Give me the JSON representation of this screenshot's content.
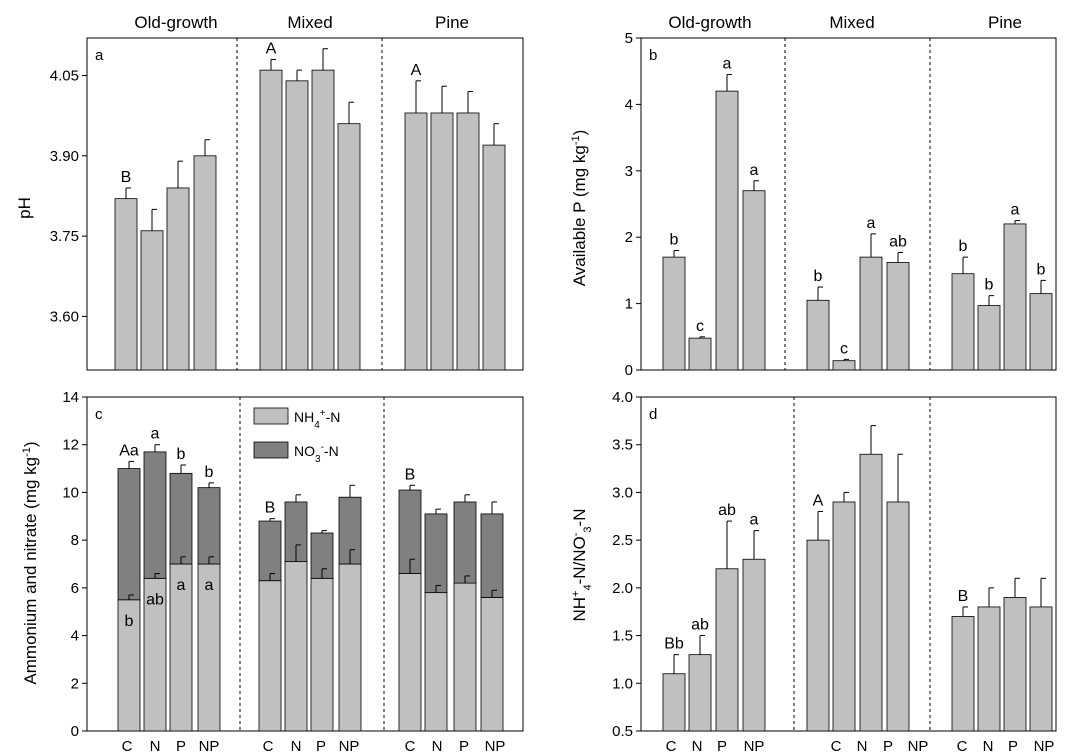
{
  "colors": {
    "bar": "#c0c0c0",
    "nitrate": "#808080",
    "edge": "#000000"
  },
  "groups": [
    "Old-growth",
    "Mixed",
    "Pine"
  ],
  "treatments": [
    "C",
    "N",
    "P",
    "NP"
  ],
  "chart_data": [
    {
      "panel": "a",
      "type": "bar",
      "ylabel": "pH",
      "ylim": [
        3.5,
        4.12
      ],
      "yticks": [
        3.6,
        3.75,
        3.9,
        4.05
      ],
      "ytick_labels": [
        "3.60",
        "3.75",
        "3.90",
        "4.05"
      ],
      "groups": [
        "Old-growth",
        "Mixed",
        "Pine"
      ],
      "categories": [
        "C",
        "N",
        "P",
        "NP"
      ],
      "values": [
        [
          3.82,
          3.76,
          3.84,
          3.9
        ],
        [
          4.06,
          4.04,
          4.06,
          3.96
        ],
        [
          3.98,
          3.98,
          3.98,
          3.92
        ]
      ],
      "errors": [
        [
          0.02,
          0.04,
          0.05,
          0.03
        ],
        [
          0.02,
          0.02,
          0.04,
          0.04
        ],
        [
          0.06,
          0.05,
          0.04,
          0.04
        ]
      ],
      "letters": [
        [
          "B",
          "",
          "",
          ""
        ],
        [
          "A",
          "",
          "",
          ""
        ],
        [
          "A",
          "",
          "",
          ""
        ]
      ]
    },
    {
      "panel": "b",
      "type": "bar",
      "ylabel": "Available P (mg kg-1)",
      "ylim": [
        0,
        5
      ],
      "yticks": [
        0,
        1,
        2,
        3,
        4,
        5
      ],
      "ytick_labels": [
        "0",
        "1",
        "2",
        "3",
        "4",
        "5"
      ],
      "groups": [
        "Old-growth",
        "Mixed",
        "Pine"
      ],
      "categories": [
        "C",
        "N",
        "P",
        "NP"
      ],
      "values": [
        [
          1.7,
          0.48,
          4.2,
          2.7
        ],
        [
          1.05,
          0.14,
          1.7,
          1.62
        ],
        [
          1.45,
          0.97,
          2.2,
          1.15
        ]
      ],
      "errors": [
        [
          0.1,
          0.02,
          0.25,
          0.15
        ],
        [
          0.2,
          0.02,
          0.35,
          0.15
        ],
        [
          0.25,
          0.15,
          0.05,
          0.2
        ]
      ],
      "letters": [
        [
          "b",
          "c",
          "a",
          "a"
        ],
        [
          "b",
          "c",
          "a",
          "ab"
        ],
        [
          "b",
          "b",
          "a",
          "b"
        ]
      ]
    },
    {
      "panel": "c",
      "type": "bar",
      "stacked": true,
      "ylabel": "Ammonium and nitrate (mg kg-1)",
      "ylim": [
        0,
        14
      ],
      "yticks": [
        0,
        2,
        4,
        6,
        8,
        10,
        12,
        14
      ],
      "ytick_labels": [
        "0",
        "2",
        "4",
        "6",
        "8",
        "10",
        "12",
        "14"
      ],
      "groups": [
        "Old-growth",
        "Mixed",
        "Pine"
      ],
      "categories": [
        "C",
        "N",
        "P",
        "NP"
      ],
      "legend": {
        "nh4": "NH4+-N",
        "no3": "NO3--N"
      },
      "series": [
        {
          "name": "NH4+-N",
          "values": [
            [
              5.5,
              6.4,
              7.0,
              7.0
            ],
            [
              6.3,
              7.1,
              6.4,
              7.0
            ],
            [
              6.6,
              5.8,
              6.2,
              5.6
            ]
          ],
          "errors": [
            [
              0.2,
              0.2,
              0.3,
              0.3
            ],
            [
              0.3,
              0.7,
              0.4,
              0.6
            ],
            [
              0.6,
              0.3,
              0.3,
              0.3
            ]
          ]
        },
        {
          "name": "NO3--N",
          "values": [
            [
              5.5,
              5.3,
              3.8,
              3.2
            ],
            [
              2.5,
              2.5,
              1.9,
              2.8
            ],
            [
              3.5,
              3.3,
              3.4,
              3.5
            ]
          ]
        }
      ],
      "totals": [
        [
          11.0,
          11.7,
          10.8,
          10.2
        ],
        [
          8.8,
          9.6,
          8.3,
          9.8
        ],
        [
          10.1,
          9.1,
          9.6,
          9.1
        ]
      ],
      "total_errors": [
        [
          0.3,
          0.3,
          0.35,
          0.2
        ],
        [
          0.1,
          0.3,
          0.1,
          0.5
        ],
        [
          0.2,
          0.2,
          0.3,
          0.5
        ]
      ],
      "top_letters": [
        [
          "Aa",
          "a",
          "b",
          "b"
        ],
        [
          "B",
          "",
          "",
          ""
        ],
        [
          "B",
          "",
          "",
          ""
        ]
      ],
      "inner_letters": [
        [
          "b",
          "ab",
          "a",
          "a"
        ],
        [
          "",
          "",
          "",
          ""
        ],
        [
          "",
          "",
          "",
          ""
        ]
      ]
    },
    {
      "panel": "d",
      "type": "bar",
      "ylabel": "NH4+-N/NO3--N",
      "ylim": [
        0.5,
        4.0
      ],
      "yticks": [
        0.5,
        1.0,
        1.5,
        2.0,
        2.5,
        3.0,
        3.5,
        4.0
      ],
      "ytick_labels": [
        "0.5",
        "1.0",
        "1.5",
        "2.0",
        "2.5",
        "3.0",
        "3.5",
        "4.0"
      ],
      "groups": [
        "Old-growth",
        "Mixed",
        "Pine"
      ],
      "categories": [
        "C",
        "N",
        "P",
        "NP"
      ],
      "values": [
        [
          1.1,
          1.3,
          2.2,
          2.3
        ],
        [
          2.5,
          2.9,
          3.4,
          2.9
        ],
        [
          1.7,
          1.8,
          1.9,
          1.8
        ]
      ],
      "errors": [
        [
          0.2,
          0.2,
          0.5,
          0.3
        ],
        [
          0.3,
          0.1,
          0.3,
          0.5
        ],
        [
          0.1,
          0.2,
          0.2,
          0.3
        ]
      ],
      "letters": [
        [
          "Bb",
          "ab",
          "ab",
          "a"
        ],
        [
          "A",
          "",
          "",
          ""
        ],
        [
          "B",
          "",
          "",
          ""
        ]
      ]
    }
  ]
}
